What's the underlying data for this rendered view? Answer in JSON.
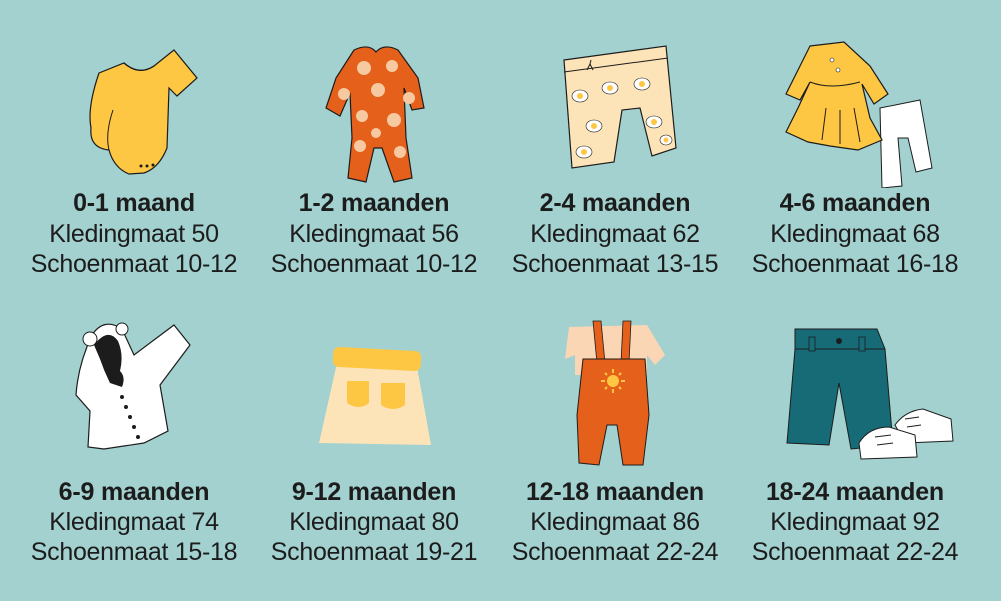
{
  "colors": {
    "background": "#a2d1cf",
    "text": "#1c1c1c",
    "yellow": "#fdc743",
    "orange": "#e5601a",
    "peach": "#f6c9a0",
    "cream": "#fde3b8",
    "teal": "#176b77",
    "white": "#ffffff"
  },
  "items": [
    {
      "age": "0-1 maand",
      "clothing": "Kledingmaat 50",
      "shoes": "Schoenmaat 10-12",
      "icon": "yellow-onesie-icon"
    },
    {
      "age": "1-2 maanden",
      "clothing": "Kledingmaat 56",
      "shoes": "Schoenmaat 10-12",
      "icon": "polka-dot-sleepsuit-icon"
    },
    {
      "age": "2-4 maanden",
      "clothing": "Kledingmaat 62",
      "shoes": "Schoenmaat 13-15",
      "icon": "egg-print-pants-icon"
    },
    {
      "age": "4-6 maanden",
      "clothing": "Kledingmaat 68",
      "shoes": "Schoenmaat 16-18",
      "icon": "dress-and-leggings-icon"
    },
    {
      "age": "6-9 maanden",
      "clothing": "Kledingmaat 74",
      "shoes": "Schoenmaat 15-18",
      "icon": "white-hooded-jacket-icon"
    },
    {
      "age": "9-12 maanden",
      "clothing": "Kledingmaat 80",
      "shoes": "Schoenmaat 19-21",
      "icon": "skirt-icon"
    },
    {
      "age": "12-18 maanden",
      "clothing": "Kledingmaat 86",
      "shoes": "Schoenmaat 22-24",
      "icon": "overalls-icon"
    },
    {
      "age": "18-24 maanden",
      "clothing": "Kledingmaat 92",
      "shoes": "Schoenmaat 22-24",
      "icon": "shorts-and-sneakers-icon"
    }
  ]
}
